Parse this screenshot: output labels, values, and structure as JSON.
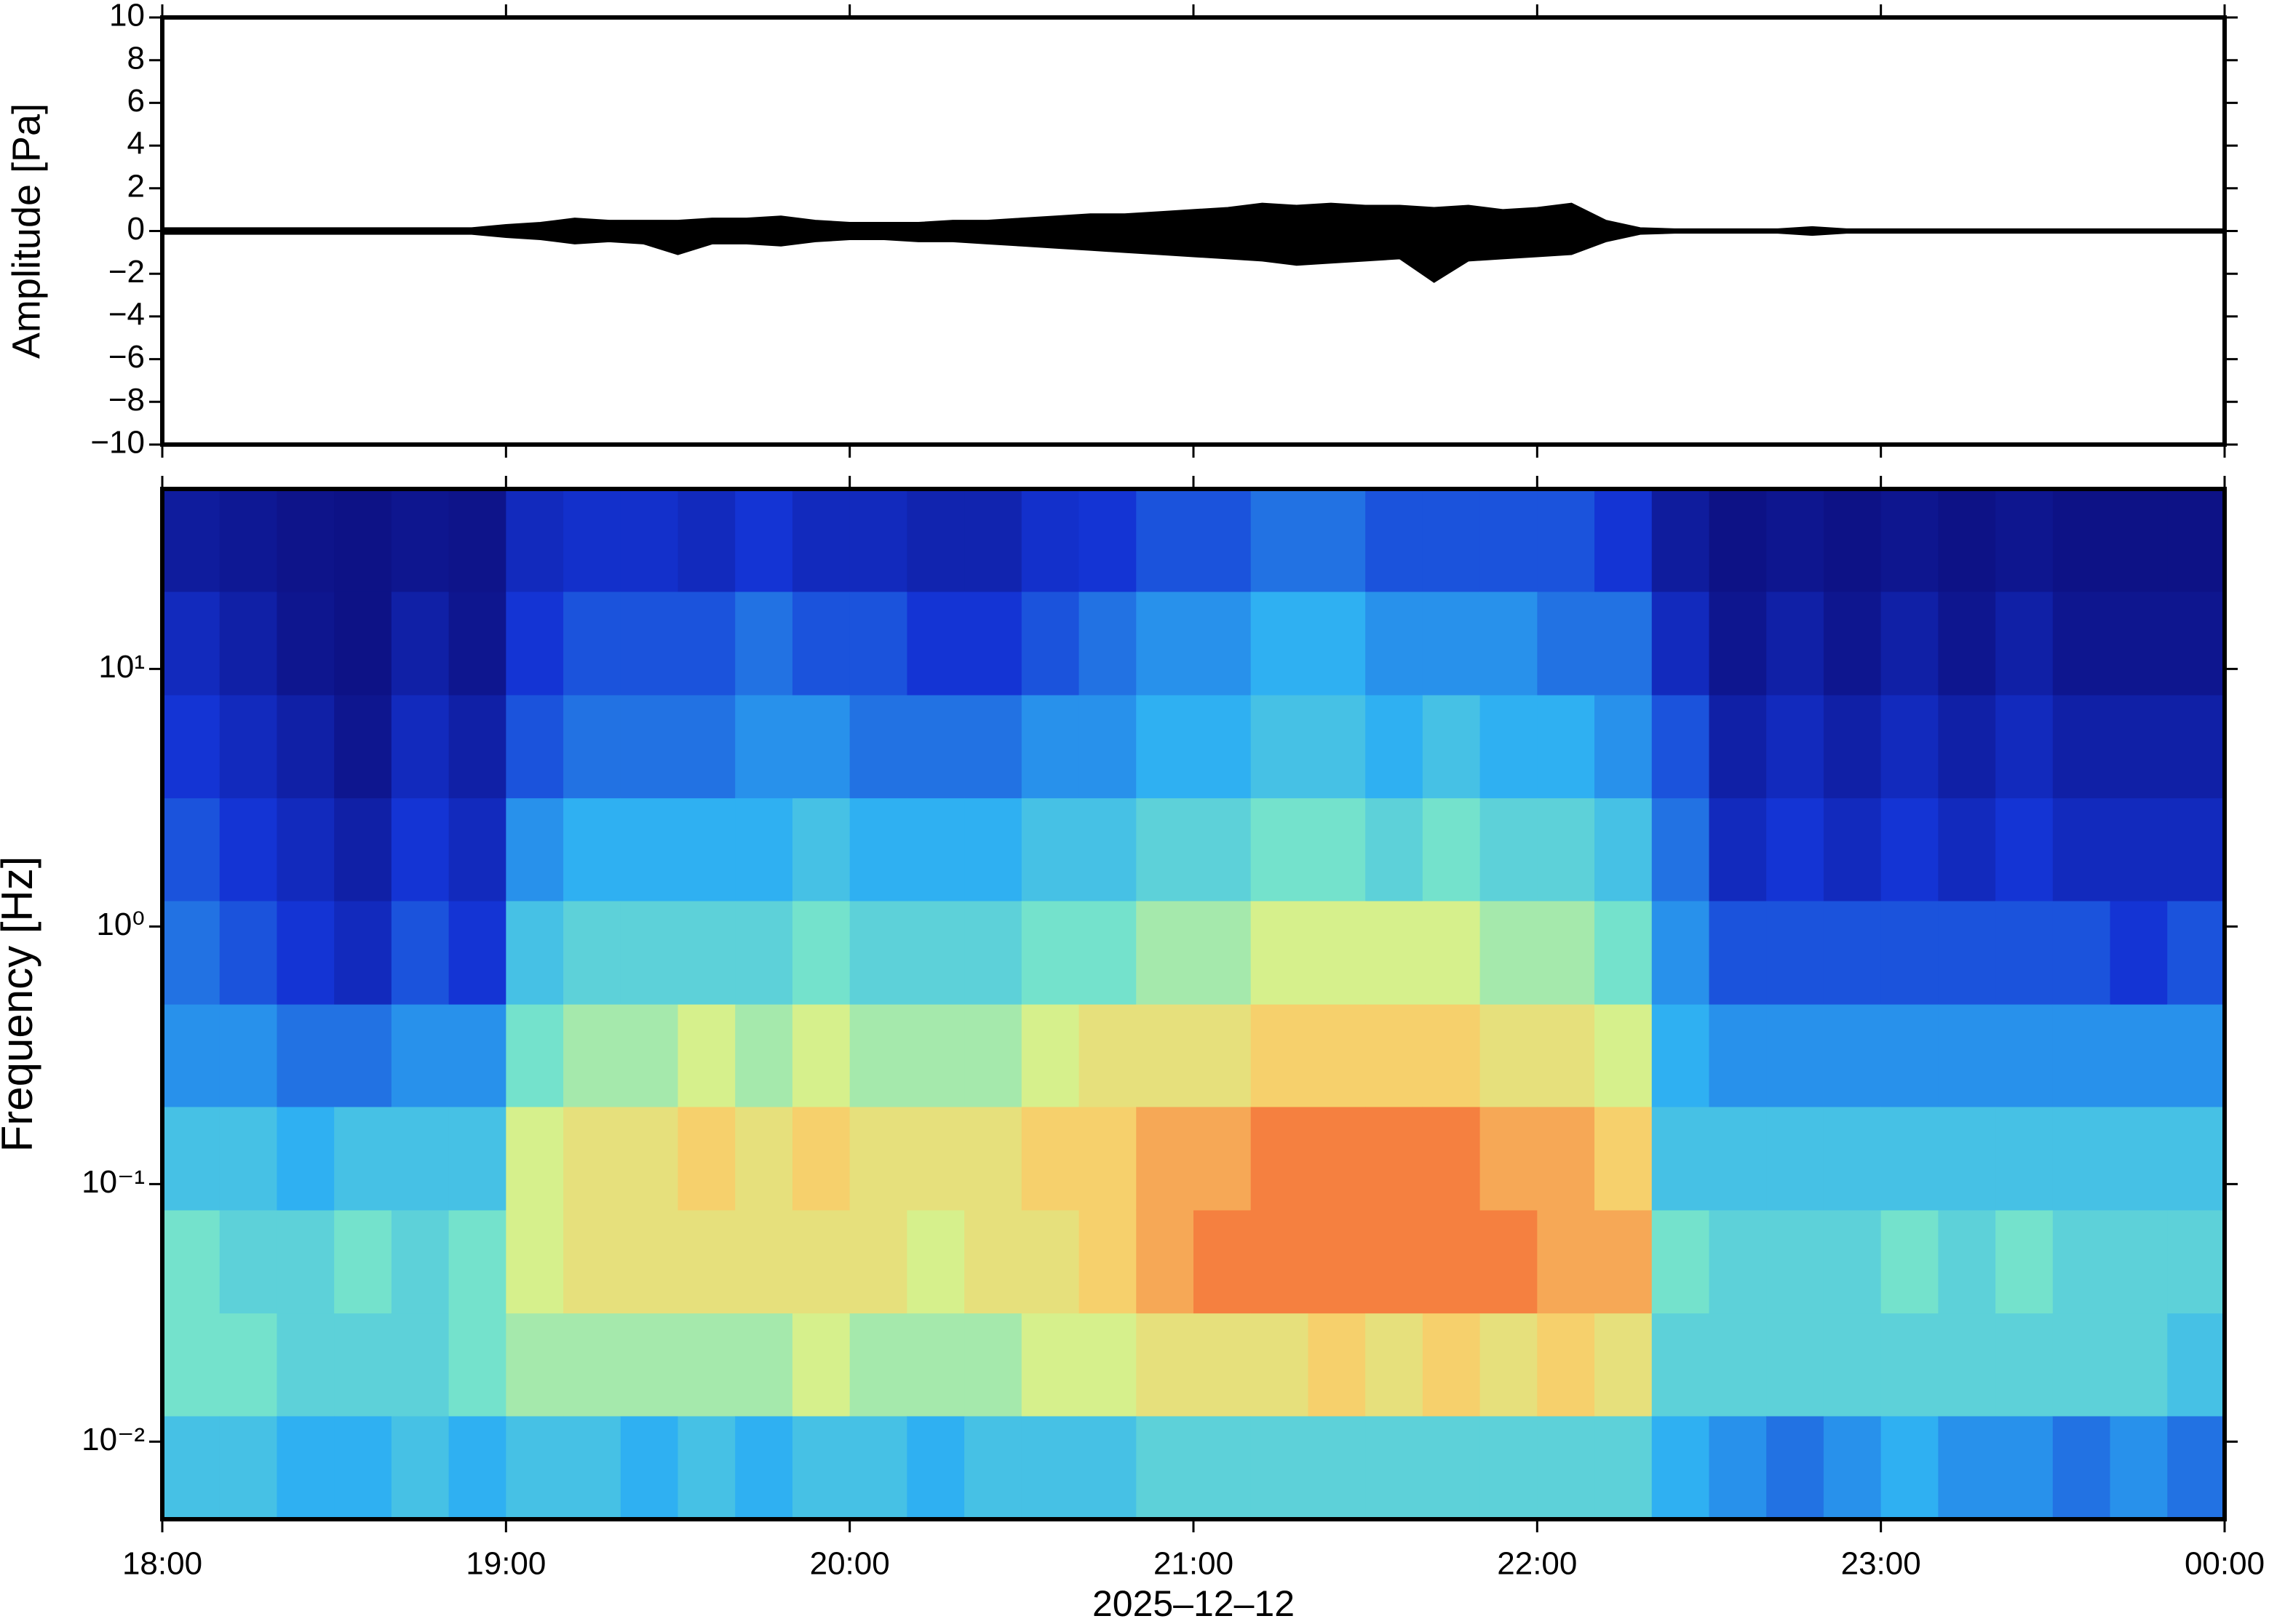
{
  "chart_data": [
    {
      "type": "envelope",
      "ylabel": "Amplitude [Pa]",
      "color": "#000000",
      "x": [
        18,
        18.1,
        18.2,
        18.3,
        18.4,
        18.5,
        18.6,
        18.7,
        18.8,
        18.9,
        19,
        19.1,
        19.2,
        19.3,
        19.4,
        19.5,
        19.6,
        19.7,
        19.8,
        19.9,
        20,
        20.1,
        20.2,
        20.3,
        20.4,
        20.5,
        20.6,
        20.7,
        20.8,
        20.9,
        21,
        21.1,
        21.2,
        21.3,
        21.4,
        21.5,
        21.6,
        21.7,
        21.8,
        21.9,
        22,
        22.1,
        22.2,
        22.3,
        22.4,
        22.5,
        22.6,
        22.7,
        22.8,
        22.9,
        23,
        23.1,
        23.2,
        23.3,
        23.4,
        23.5,
        23.6,
        23.7,
        23.8,
        23.9,
        24
      ],
      "upper": [
        0.15,
        0.15,
        0.15,
        0.15,
        0.15,
        0.15,
        0.15,
        0.15,
        0.15,
        0.15,
        0.3,
        0.4,
        0.6,
        0.5,
        0.5,
        0.5,
        0.6,
        0.6,
        0.7,
        0.5,
        0.4,
        0.4,
        0.4,
        0.5,
        0.5,
        0.6,
        0.7,
        0.8,
        0.8,
        0.9,
        1.0,
        1.1,
        1.3,
        1.2,
        1.3,
        1.2,
        1.2,
        1.1,
        1.2,
        1.0,
        1.1,
        1.3,
        0.5,
        0.15,
        0.1,
        0.1,
        0.1,
        0.1,
        0.2,
        0.1,
        0.1,
        0.1,
        0.1,
        0.1,
        0.1,
        0.1,
        0.1,
        0.1,
        0.1,
        0.1,
        0.1
      ],
      "lower": [
        -0.15,
        -0.15,
        -0.15,
        -0.15,
        -0.15,
        -0.15,
        -0.15,
        -0.15,
        -0.15,
        -0.15,
        -0.3,
        -0.4,
        -0.6,
        -0.5,
        -0.6,
        -1.1,
        -0.6,
        -0.6,
        -0.7,
        -0.5,
        -0.4,
        -0.4,
        -0.5,
        -0.5,
        -0.6,
        -0.7,
        -0.8,
        -0.9,
        -1.0,
        -1.1,
        -1.2,
        -1.3,
        -1.4,
        -1.6,
        -1.5,
        -1.4,
        -1.3,
        -2.4,
        -1.4,
        -1.3,
        -1.2,
        -1.1,
        -0.5,
        -0.15,
        -0.1,
        -0.1,
        -0.1,
        -0.1,
        -0.2,
        -0.1,
        -0.1,
        -0.1,
        -0.1,
        -0.1,
        -0.1,
        -0.1,
        -0.1,
        -0.1,
        -0.1,
        -0.1,
        -0.1
      ],
      "xlim": [
        18,
        24
      ],
      "xticks": [
        18,
        19,
        20,
        21,
        22,
        23,
        24
      ],
      "ylim": [
        -10,
        10
      ],
      "yticks": [
        {
          "value": -10,
          "label": "−10"
        },
        {
          "value": -8,
          "label": "−8"
        },
        {
          "value": -6,
          "label": "−6"
        },
        {
          "value": -4,
          "label": "−4"
        },
        {
          "value": -2,
          "label": "−2"
        },
        0,
        2,
        4,
        6,
        8,
        10
      ]
    },
    {
      "type": "heatmap",
      "ylabel": "Frequency [Hz]",
      "xlabel": "2025–12–12",
      "log_y": true,
      "xlim": [
        18,
        24
      ],
      "xticks": [
        {
          "value": 18,
          "label": "18:00"
        },
        {
          "value": 19,
          "label": "19:00"
        },
        {
          "value": 20,
          "label": "20:00"
        },
        {
          "value": 21,
          "label": "21:00"
        },
        {
          "value": 22,
          "label": "22:00"
        },
        {
          "value": 23,
          "label": "23:00"
        },
        {
          "value": 24,
          "label": "00:00"
        }
      ],
      "ylim": [
        0.005,
        50
      ],
      "yticks": [
        {
          "value": 0.01,
          "label": "10⁻²"
        },
        {
          "value": 0.1,
          "label": "10⁻¹"
        },
        {
          "value": 1,
          "label": "10⁰"
        },
        {
          "value": 10,
          "label": "10¹"
        }
      ],
      "ybins": [
        0.005,
        0.0126,
        0.0316,
        0.0794,
        0.2,
        0.5,
        1.26,
        3.16,
        7.94,
        20,
        50
      ],
      "clim": [
        0,
        10
      ],
      "colorscale": [
        [
          0,
          "#0c0c78"
        ],
        [
          2,
          "#1434d4"
        ],
        [
          4,
          "#2fb0f2"
        ],
        [
          5.5,
          "#74e2cc"
        ],
        [
          6.5,
          "#d6f08c"
        ],
        [
          7.5,
          "#f6d06c"
        ],
        [
          8.5,
          "#f58040"
        ],
        [
          10,
          "#d02020"
        ]
      ],
      "values": [
        [
          4.5,
          5.5,
          5.5,
          4.5,
          3.5,
          3,
          2.5,
          2,
          1.5,
          0.8
        ],
        [
          4.5,
          5.5,
          5,
          4.5,
          3.5,
          2.5,
          2,
          1.5,
          1,
          0.6
        ],
        [
          4,
          5,
          5,
          4,
          3,
          2,
          1.5,
          1,
          0.5,
          0.4
        ],
        [
          4,
          5,
          5.5,
          4.5,
          3,
          1.5,
          1,
          0.5,
          0.3,
          0.3
        ],
        [
          4.5,
          5,
          5,
          4.5,
          3.5,
          2.5,
          2,
          1.5,
          1,
          0.5
        ],
        [
          4,
          5.5,
          5.5,
          4.5,
          3.5,
          2,
          1.5,
          1,
          0.5,
          0.4
        ],
        [
          4.5,
          6,
          6.5,
          6.5,
          5.5,
          4.5,
          3.5,
          2.5,
          2,
          1.5
        ],
        [
          4.5,
          6,
          7,
          7,
          6,
          5,
          4,
          3,
          2.5,
          1.8
        ],
        [
          4,
          6,
          7,
          7,
          6,
          5,
          4,
          3,
          2.5,
          1.8
        ],
        [
          4.5,
          6,
          7,
          7.5,
          6.5,
          5,
          4,
          3,
          2.5,
          1.5
        ],
        [
          4,
          6,
          7,
          7,
          6,
          5,
          4,
          3.5,
          3,
          2
        ],
        [
          4.5,
          6.5,
          7,
          7.5,
          6.5,
          5.5,
          4.5,
          3.5,
          2.5,
          1.5
        ],
        [
          4.5,
          6,
          7,
          7,
          6,
          5,
          4,
          3,
          2.5,
          1.5
        ],
        [
          4,
          6,
          6.5,
          7,
          6,
          5,
          4,
          3,
          2,
          1.2
        ],
        [
          4.5,
          6,
          7,
          7,
          6,
          5,
          4,
          3,
          2,
          1.2
        ],
        [
          4.5,
          6.5,
          7,
          7.5,
          6.5,
          5.5,
          4.5,
          3.5,
          2.5,
          1.8
        ],
        [
          4.5,
          6.5,
          7.5,
          7.5,
          7,
          5.5,
          4.5,
          3.5,
          3,
          2
        ],
        [
          5,
          7,
          8,
          8,
          7,
          6,
          5,
          4,
          3.5,
          2.5
        ],
        [
          5,
          7,
          8.5,
          8,
          7,
          6,
          5,
          4,
          3.5,
          2.5
        ],
        [
          5,
          7,
          8.5,
          8.5,
          7.5,
          6.5,
          5.5,
          4.5,
          4,
          3
        ],
        [
          5,
          7.5,
          8.5,
          8.5,
          7.5,
          6.5,
          5.5,
          4.5,
          4,
          3
        ],
        [
          5,
          7,
          8.5,
          8.5,
          7.5,
          6.5,
          5,
          4,
          3.5,
          2.5
        ],
        [
          5,
          7.5,
          8.5,
          8.5,
          7.5,
          6.5,
          5.5,
          4.5,
          3.5,
          2.5
        ],
        [
          5,
          7,
          8.5,
          8,
          7,
          6,
          5,
          4,
          3.5,
          2.5
        ],
        [
          5,
          7.5,
          8,
          8,
          7,
          6,
          5,
          4,
          3,
          2.5
        ],
        [
          5,
          7,
          8,
          7.5,
          6.5,
          5.5,
          4.5,
          3.5,
          3,
          2
        ],
        [
          4,
          5,
          5.5,
          4.5,
          4,
          3.5,
          3,
          2.5,
          1.5,
          0.8
        ],
        [
          3.5,
          5,
          5,
          4.5,
          3.5,
          2.5,
          1.5,
          1,
          0.5,
          0.3
        ],
        [
          3,
          5,
          5,
          4.5,
          3.5,
          2.5,
          2,
          1.5,
          1,
          0.5
        ],
        [
          3.5,
          5,
          5,
          4.5,
          3.5,
          2.5,
          1.5,
          1,
          0.5,
          0.3
        ],
        [
          4,
          5,
          5.5,
          4.5,
          3.5,
          2.5,
          2,
          1.5,
          1,
          0.5
        ],
        [
          3.5,
          5,
          5,
          4.5,
          3.5,
          2.5,
          1.5,
          1,
          0.5,
          0.3
        ],
        [
          3.5,
          5,
          5.5,
          4.5,
          3.5,
          2.5,
          2,
          1.5,
          1,
          0.5
        ],
        [
          3,
          5,
          5,
          4.5,
          3.5,
          2.5,
          1.5,
          1,
          0.5,
          0.3
        ],
        [
          3.5,
          5,
          5,
          4.5,
          3.5,
          2,
          1.5,
          1,
          0.5,
          0.3
        ],
        [
          3,
          4.5,
          5,
          4.5,
          3.5,
          2.5,
          1.5,
          1,
          0.5,
          0.3
        ]
      ]
    }
  ]
}
